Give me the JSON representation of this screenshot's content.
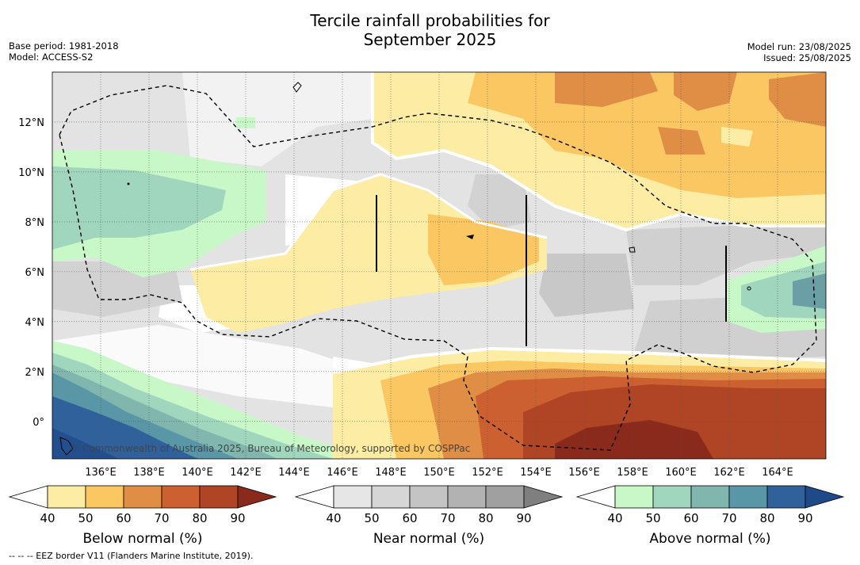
{
  "title": {
    "line1": "Tercile rainfall probabilities for",
    "line2": "September 2025"
  },
  "meta_left": {
    "base_period": "Base period: 1981-2018",
    "model": "Model: ACCESS-S2"
  },
  "meta_right": {
    "model_run": "Model run: 23/08/2025",
    "issued": "Issued: 25/08/2025"
  },
  "map": {
    "lon_ticks": [
      "136°E",
      "138°E",
      "140°E",
      "142°E",
      "144°E",
      "146°E",
      "148°E",
      "150°E",
      "152°E",
      "154°E",
      "156°E",
      "158°E",
      "160°E",
      "162°E",
      "164°E"
    ],
    "lat_ticks": [
      "12°N",
      "10°N",
      "8°N",
      "6°N",
      "4°N",
      "2°N",
      "0°"
    ],
    "copyright": "© Commonwealth of Australia 2025, Bureau of Meteorology, supported by COSPPac",
    "lon_range": [
      134.0,
      166.0
    ],
    "lat_range": [
      -1.5,
      14.0
    ]
  },
  "colorbars": [
    {
      "label": "Below normal (%)",
      "ticks": [
        "40",
        "50",
        "60",
        "70",
        "80",
        "90"
      ],
      "colors": [
        "#ffffff",
        "#fdeca3",
        "#fbc762",
        "#e08e46",
        "#cc6030",
        "#b04525",
        "#8a2a1c"
      ]
    },
    {
      "label": "Near normal (%)",
      "ticks": [
        "40",
        "50",
        "60",
        "70",
        "80",
        "90"
      ],
      "colors": [
        "#ffffff",
        "#e6e6e6",
        "#d6d6d6",
        "#c4c4c4",
        "#b2b2b2",
        "#a0a0a0",
        "#7f7f7f"
      ]
    },
    {
      "label": "Above normal (%)",
      "ticks": [
        "40",
        "50",
        "60",
        "70",
        "80",
        "90"
      ],
      "colors": [
        "#ffffff",
        "#c8f7c8",
        "#9fd6bd",
        "#80b6ae",
        "#5a97a6",
        "#31619a",
        "#1e4a8a"
      ]
    }
  ],
  "footnote": "--  --  -- EEZ border V11 (Flanders Marine Institute, 2019)."
}
